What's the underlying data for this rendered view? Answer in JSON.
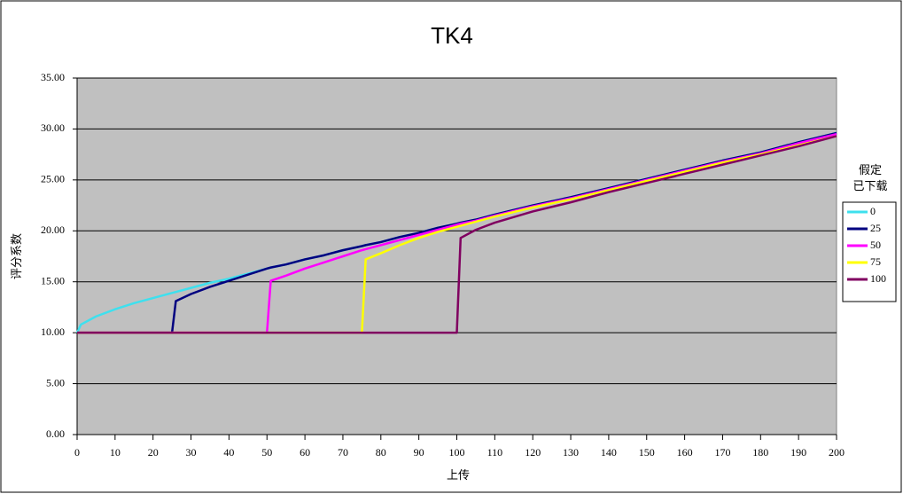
{
  "chart_data": {
    "type": "line",
    "title": "TK4",
    "x_label": "上传",
    "y_label": "评分系数",
    "legend_title": [
      "假定",
      "已下载"
    ],
    "legend": "right",
    "grid": true,
    "background": "#c0c0c0",
    "x": [
      0,
      1,
      5,
      10,
      15,
      20,
      25,
      26,
      30,
      35,
      40,
      45,
      50,
      51,
      55,
      60,
      65,
      70,
      75,
      76,
      80,
      85,
      90,
      95,
      100,
      101,
      105,
      110,
      120,
      130,
      140,
      150,
      160,
      170,
      180,
      190,
      200
    ],
    "series": [
      {
        "name": "0",
        "color": "#3ee0ee",
        "values": [
          10,
          10.8,
          11.6,
          12.3,
          12.9,
          13.4,
          13.9,
          14.0,
          14.4,
          14.9,
          15.3,
          15.8,
          16.3,
          16.4,
          16.7,
          17.2,
          17.6,
          18.1,
          18.5,
          18.6,
          18.9,
          19.4,
          19.8,
          20.3,
          20.7,
          20.8,
          21.1,
          21.6,
          22.5,
          23.3,
          24.2,
          25.1,
          26.0,
          26.9,
          27.7,
          28.7,
          29.6
        ]
      },
      {
        "name": "25",
        "color": "#000080",
        "values": [
          10,
          10,
          10,
          10,
          10,
          10,
          10,
          13.1,
          13.8,
          14.5,
          15.1,
          15.7,
          16.3,
          16.4,
          16.7,
          17.2,
          17.6,
          18.1,
          18.5,
          18.6,
          18.9,
          19.4,
          19.8,
          20.3,
          20.7,
          20.8,
          21.1,
          21.6,
          22.5,
          23.3,
          24.2,
          25.1,
          26.0,
          26.9,
          27.7,
          28.7,
          29.6
        ]
      },
      {
        "name": "50",
        "color": "#ff00ff",
        "values": [
          10,
          10,
          10,
          10,
          10,
          10,
          10,
          10,
          10,
          10,
          10,
          10,
          10,
          15.1,
          15.6,
          16.3,
          16.9,
          17.5,
          18.1,
          18.2,
          18.6,
          19.1,
          19.6,
          20.1,
          20.6,
          20.7,
          21.0,
          21.5,
          22.4,
          23.2,
          24.1,
          25.0,
          25.9,
          26.8,
          27.6,
          28.6,
          29.5
        ]
      },
      {
        "name": "75",
        "color": "#ffff00",
        "values": [
          10,
          10,
          10,
          10,
          10,
          10,
          10,
          10,
          10,
          10,
          10,
          10,
          10,
          10,
          10,
          10,
          10,
          10,
          10,
          17.2,
          17.8,
          18.6,
          19.3,
          19.9,
          20.4,
          20.5,
          20.9,
          21.4,
          22.3,
          23.1,
          24.0,
          24.9,
          25.8,
          26.7,
          27.5,
          28.4,
          29.3
        ]
      },
      {
        "name": "100",
        "color": "#800060",
        "values": [
          10,
          10,
          10,
          10,
          10,
          10,
          10,
          10,
          10,
          10,
          10,
          10,
          10,
          10,
          10,
          10,
          10,
          10,
          10,
          10,
          10,
          10,
          10,
          10,
          10,
          19.3,
          20.1,
          20.8,
          21.9,
          22.8,
          23.8,
          24.7,
          25.6,
          26.5,
          27.4,
          28.3,
          29.3
        ]
      }
    ],
    "xlim": [
      0,
      200
    ],
    "xticks": [
      0,
      10,
      20,
      30,
      40,
      50,
      60,
      70,
      80,
      90,
      100,
      110,
      120,
      130,
      140,
      150,
      160,
      170,
      180,
      190,
      200
    ],
    "ylim": [
      0,
      35
    ],
    "yticks": [
      {
        "value": 0,
        "label": "0.00"
      },
      {
        "value": 5,
        "label": "5.00"
      },
      {
        "value": 10,
        "label": "10.00"
      },
      {
        "value": 15,
        "label": "15.00"
      },
      {
        "value": 20,
        "label": "20.00"
      },
      {
        "value": 25,
        "label": "25.00"
      },
      {
        "value": 30,
        "label": "30.00"
      },
      {
        "value": 35,
        "label": "35.00"
      }
    ]
  }
}
